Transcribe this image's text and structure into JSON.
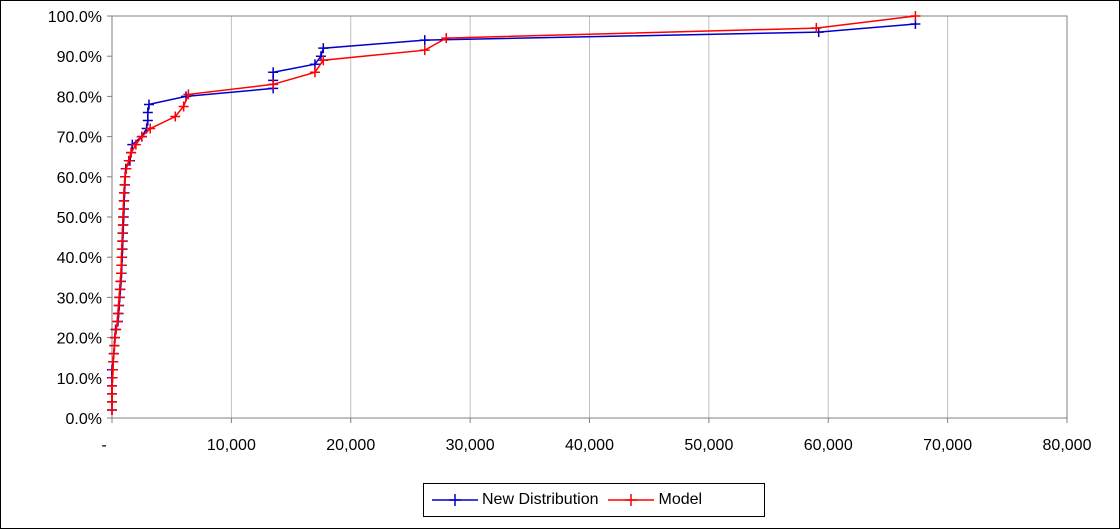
{
  "chart_data": {
    "type": "line",
    "title": "",
    "xlabel": "",
    "ylabel": "",
    "xlim": [
      0,
      80000
    ],
    "ylim": [
      0,
      100
    ],
    "x_ticks": [
      "-",
      "10,000",
      "20,000",
      "30,000",
      "40,000",
      "50,000",
      "60,000",
      "70,000",
      "80,000"
    ],
    "y_ticks": [
      "0.0%",
      "10.0%",
      "20.0%",
      "30.0%",
      "40.0%",
      "50.0%",
      "60.0%",
      "70.0%",
      "80.0%",
      "90.0%",
      "100.0%"
    ],
    "grid": "vertical",
    "legend_position": "bottom",
    "series": [
      {
        "name": "New Distribution",
        "color": "#0000CC",
        "marker": "plus",
        "points": [
          [
            0,
            2
          ],
          [
            0,
            4
          ],
          [
            0,
            6
          ],
          [
            0,
            8
          ],
          [
            0,
            10
          ],
          [
            0,
            12
          ],
          [
            100,
            14
          ],
          [
            150,
            16
          ],
          [
            200,
            18
          ],
          [
            250,
            20
          ],
          [
            300,
            22
          ],
          [
            500,
            24
          ],
          [
            550,
            26
          ],
          [
            600,
            28
          ],
          [
            650,
            30
          ],
          [
            700,
            32
          ],
          [
            750,
            34
          ],
          [
            800,
            36
          ],
          [
            820,
            38
          ],
          [
            850,
            40
          ],
          [
            880,
            42
          ],
          [
            900,
            44
          ],
          [
            920,
            46
          ],
          [
            950,
            48
          ],
          [
            980,
            50
          ],
          [
            1000,
            52
          ],
          [
            1020,
            54
          ],
          [
            1050,
            56
          ],
          [
            1080,
            58
          ],
          [
            1100,
            60
          ],
          [
            1150,
            62
          ],
          [
            1500,
            64
          ],
          [
            1600,
            66
          ],
          [
            1700,
            68
          ],
          [
            2500,
            70
          ],
          [
            2900,
            72
          ],
          [
            3000,
            74
          ],
          [
            3000,
            76
          ],
          [
            3100,
            78
          ],
          [
            6200,
            80
          ],
          [
            13500,
            82
          ],
          [
            13500,
            84
          ],
          [
            13500,
            86
          ],
          [
            17000,
            88
          ],
          [
            17500,
            90
          ],
          [
            17700,
            92
          ],
          [
            26200,
            94
          ],
          [
            59200,
            96
          ],
          [
            67300,
            98
          ]
        ]
      },
      {
        "name": "Model",
        "color": "#FF0000",
        "marker": "plus",
        "points": [
          [
            0,
            2
          ],
          [
            0,
            4
          ],
          [
            0,
            6
          ],
          [
            0,
            8
          ],
          [
            50,
            10
          ],
          [
            80,
            12
          ],
          [
            100,
            14
          ],
          [
            150,
            16
          ],
          [
            200,
            18
          ],
          [
            250,
            20
          ],
          [
            350,
            22
          ],
          [
            450,
            24
          ],
          [
            500,
            26
          ],
          [
            550,
            28
          ],
          [
            600,
            30
          ],
          [
            650,
            32
          ],
          [
            700,
            34
          ],
          [
            750,
            36
          ],
          [
            780,
            38
          ],
          [
            800,
            40
          ],
          [
            820,
            42
          ],
          [
            850,
            44
          ],
          [
            870,
            46
          ],
          [
            900,
            48
          ],
          [
            920,
            50
          ],
          [
            950,
            52
          ],
          [
            980,
            54
          ],
          [
            1000,
            56
          ],
          [
            1050,
            58
          ],
          [
            1100,
            60
          ],
          [
            1200,
            62
          ],
          [
            1400,
            64
          ],
          [
            1600,
            66
          ],
          [
            2000,
            68
          ],
          [
            2500,
            70
          ],
          [
            3200,
            72
          ],
          [
            5300,
            75
          ],
          [
            6000,
            77.5
          ],
          [
            6400,
            80.5
          ],
          [
            13500,
            83
          ],
          [
            17000,
            86
          ],
          [
            17700,
            89
          ],
          [
            26200,
            91.5
          ],
          [
            28000,
            94.5
          ],
          [
            59000,
            97
          ],
          [
            67300,
            100
          ]
        ]
      }
    ]
  }
}
